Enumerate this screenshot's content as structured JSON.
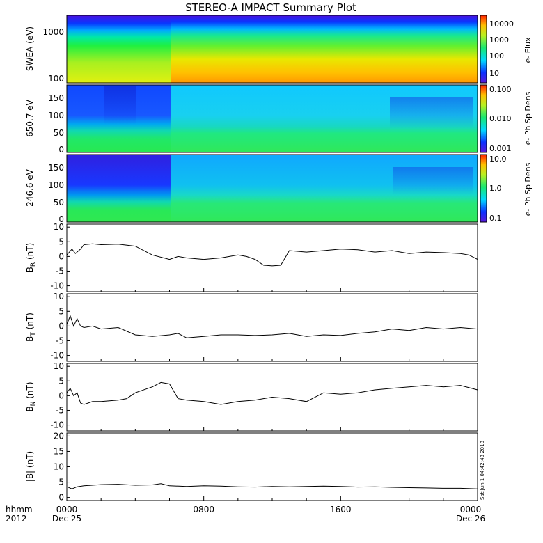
{
  "title": "STEREO-A IMPACT Summary Plot",
  "time_axis": {
    "row1_labels": [
      "0000",
      "0800",
      "1600",
      "0000"
    ],
    "row2_labels": [
      "Dec 25",
      "",
      "",
      "Dec 26"
    ],
    "legend_line1": "hhmm",
    "legend_line2": "2012",
    "range_hours": [
      0,
      24
    ]
  },
  "timestamp": "Sat Jun  1 04:42:43 2013",
  "colors": {
    "trace": "#000000",
    "frame": "#000000",
    "background": "#ffffff"
  },
  "chart_data": [
    {
      "type": "heatmap",
      "ylabel": "SWEA (eV)",
      "y_scale": "log",
      "ylim": [
        90,
        2000
      ],
      "ytick_labels": [
        "1000",
        "100"
      ],
      "ytick_values": [
        1000,
        100
      ],
      "colorbar": {
        "label": "e- Flux",
        "scale": "log",
        "tick_labels": [
          "10000",
          "1000",
          "100",
          "10"
        ],
        "tick_values": [
          10000,
          1000,
          100,
          10
        ],
        "range": [
          4,
          20000
        ]
      },
      "description_values": {
        "pre_0540_low_energy_flux": 1000,
        "post_0540_low_energy_flux": 8000,
        "high_energy_flux": 5
      }
    },
    {
      "type": "heatmap",
      "ylabel": "650.7 eV",
      "ylim": [
        -5,
        180
      ],
      "ytick_labels": [
        "150",
        "100",
        "50",
        "0"
      ],
      "ytick_values": [
        150,
        100,
        50,
        0
      ],
      "colorbar": {
        "label": "e- Ph Sp Dens",
        "scale": "log",
        "tick_labels": [
          "0.100",
          "0.010",
          "0.001"
        ],
        "tick_values": [
          0.1,
          0.01,
          0.001
        ],
        "range": [
          0.001,
          0.1
        ]
      }
    },
    {
      "type": "heatmap",
      "ylabel": "246.6 eV",
      "ylim": [
        -5,
        180
      ],
      "ytick_labels": [
        "150",
        "100",
        "50",
        "0"
      ],
      "ytick_values": [
        150,
        100,
        50,
        0
      ],
      "colorbar": {
        "label": "e- Ph Sp Dens",
        "scale": "log",
        "tick_labels": [
          "10.0",
          "1.0",
          "0.1"
        ],
        "tick_values": [
          10,
          1,
          0.1
        ],
        "range": [
          0.1,
          10
        ]
      }
    },
    {
      "type": "line",
      "ylabel_base": "B",
      "ylabel_sub": "R",
      "ylabel_unit": " (nT)",
      "ylim": [
        -12,
        11
      ],
      "ytick_labels": [
        "10",
        "5",
        "0",
        "-5",
        "-10"
      ],
      "ytick_values": [
        10,
        5,
        0,
        -5,
        -10
      ],
      "x": [
        0,
        0.3,
        0.5,
        0.8,
        1.0,
        1.5,
        2,
        3,
        4,
        5,
        6,
        6.5,
        7,
        8,
        9,
        10,
        10.5,
        11,
        11.5,
        12,
        12.5,
        12.8,
        13,
        14,
        15,
        16,
        17,
        18,
        19,
        20,
        21,
        22,
        23,
        23.5,
        24
      ],
      "values": [
        0.5,
        2.5,
        1.0,
        2.5,
        4.0,
        4.3,
        4.0,
        4.2,
        3.5,
        0.5,
        -1.0,
        0.0,
        -0.5,
        -1.0,
        -0.5,
        0.5,
        0.0,
        -1.0,
        -3.0,
        -3.2,
        -3.0,
        0.0,
        2.0,
        1.5,
        2.0,
        2.5,
        2.3,
        1.5,
        2.0,
        1.0,
        1.5,
        1.3,
        1.0,
        0.5,
        -1.0
      ]
    },
    {
      "type": "line",
      "ylabel_base": "B",
      "ylabel_sub": "T",
      "ylabel_unit": " (nT)",
      "ylim": [
        -12,
        11
      ],
      "ytick_labels": [
        "10",
        "5",
        "0",
        "-5",
        "-10"
      ],
      "ytick_values": [
        10,
        5,
        0,
        -5,
        -10
      ],
      "x": [
        0,
        0.2,
        0.4,
        0.6,
        0.8,
        1,
        1.5,
        2,
        3,
        4,
        5,
        6,
        6.5,
        7,
        8,
        9,
        10,
        11,
        12,
        13,
        14,
        15,
        16,
        17,
        18,
        19,
        20,
        21,
        22,
        23,
        24
      ],
      "values": [
        0.5,
        3.5,
        0.0,
        2.5,
        0.0,
        -0.5,
        0.0,
        -1.0,
        -0.5,
        -3.0,
        -3.5,
        -3.0,
        -2.5,
        -4.0,
        -3.5,
        -3.0,
        -3.0,
        -3.2,
        -3.0,
        -2.5,
        -3.5,
        -3.0,
        -3.2,
        -2.5,
        -2.0,
        -1.0,
        -1.5,
        -0.5,
        -1.0,
        -0.5,
        -1.0
      ]
    },
    {
      "type": "line",
      "ylabel_base": "B",
      "ylabel_sub": "N",
      "ylabel_unit": " (nT)",
      "ylim": [
        -12,
        11
      ],
      "ytick_labels": [
        "10",
        "5",
        "0",
        "-5",
        "-10"
      ],
      "ytick_values": [
        10,
        5,
        0,
        -5,
        -10
      ],
      "x": [
        0,
        0.2,
        0.4,
        0.6,
        0.8,
        1.0,
        1.5,
        2,
        3,
        3.5,
        4,
        5,
        5.5,
        6,
        6.5,
        7,
        8,
        9,
        10,
        11,
        12,
        13,
        14,
        15,
        16,
        17,
        18,
        19,
        20,
        21,
        22,
        23,
        24
      ],
      "values": [
        1.0,
        2.5,
        0.0,
        1.0,
        -2.5,
        -3.0,
        -2.0,
        -2.0,
        -1.5,
        -1.0,
        1.0,
        3.0,
        4.5,
        4.0,
        -1.0,
        -1.5,
        -2.0,
        -3.0,
        -2.0,
        -1.5,
        -0.5,
        -1.0,
        -2.0,
        1.0,
        0.5,
        1.0,
        2.0,
        2.5,
        3.0,
        3.5,
        3.0,
        3.5,
        2.0
      ]
    },
    {
      "type": "line",
      "ylabel": "|B| (nT)",
      "ylim": [
        -1,
        21
      ],
      "ytick_labels": [
        "20",
        "15",
        "10",
        "5",
        "0"
      ],
      "ytick_values": [
        20,
        15,
        10,
        5,
        0
      ],
      "x": [
        0,
        0.3,
        0.6,
        1,
        2,
        3,
        4,
        5,
        5.5,
        6,
        7,
        8,
        9,
        10,
        11,
        12,
        13,
        14,
        15,
        16,
        17,
        18,
        19,
        20,
        21,
        22,
        23,
        24
      ],
      "values": [
        3.5,
        2.8,
        3.5,
        3.8,
        4.2,
        4.3,
        4.0,
        4.1,
        4.5,
        3.8,
        3.6,
        3.8,
        3.7,
        3.5,
        3.4,
        3.6,
        3.5,
        3.6,
        3.7,
        3.6,
        3.4,
        3.5,
        3.3,
        3.2,
        3.1,
        3.0,
        3.0,
        2.8
      ]
    }
  ]
}
